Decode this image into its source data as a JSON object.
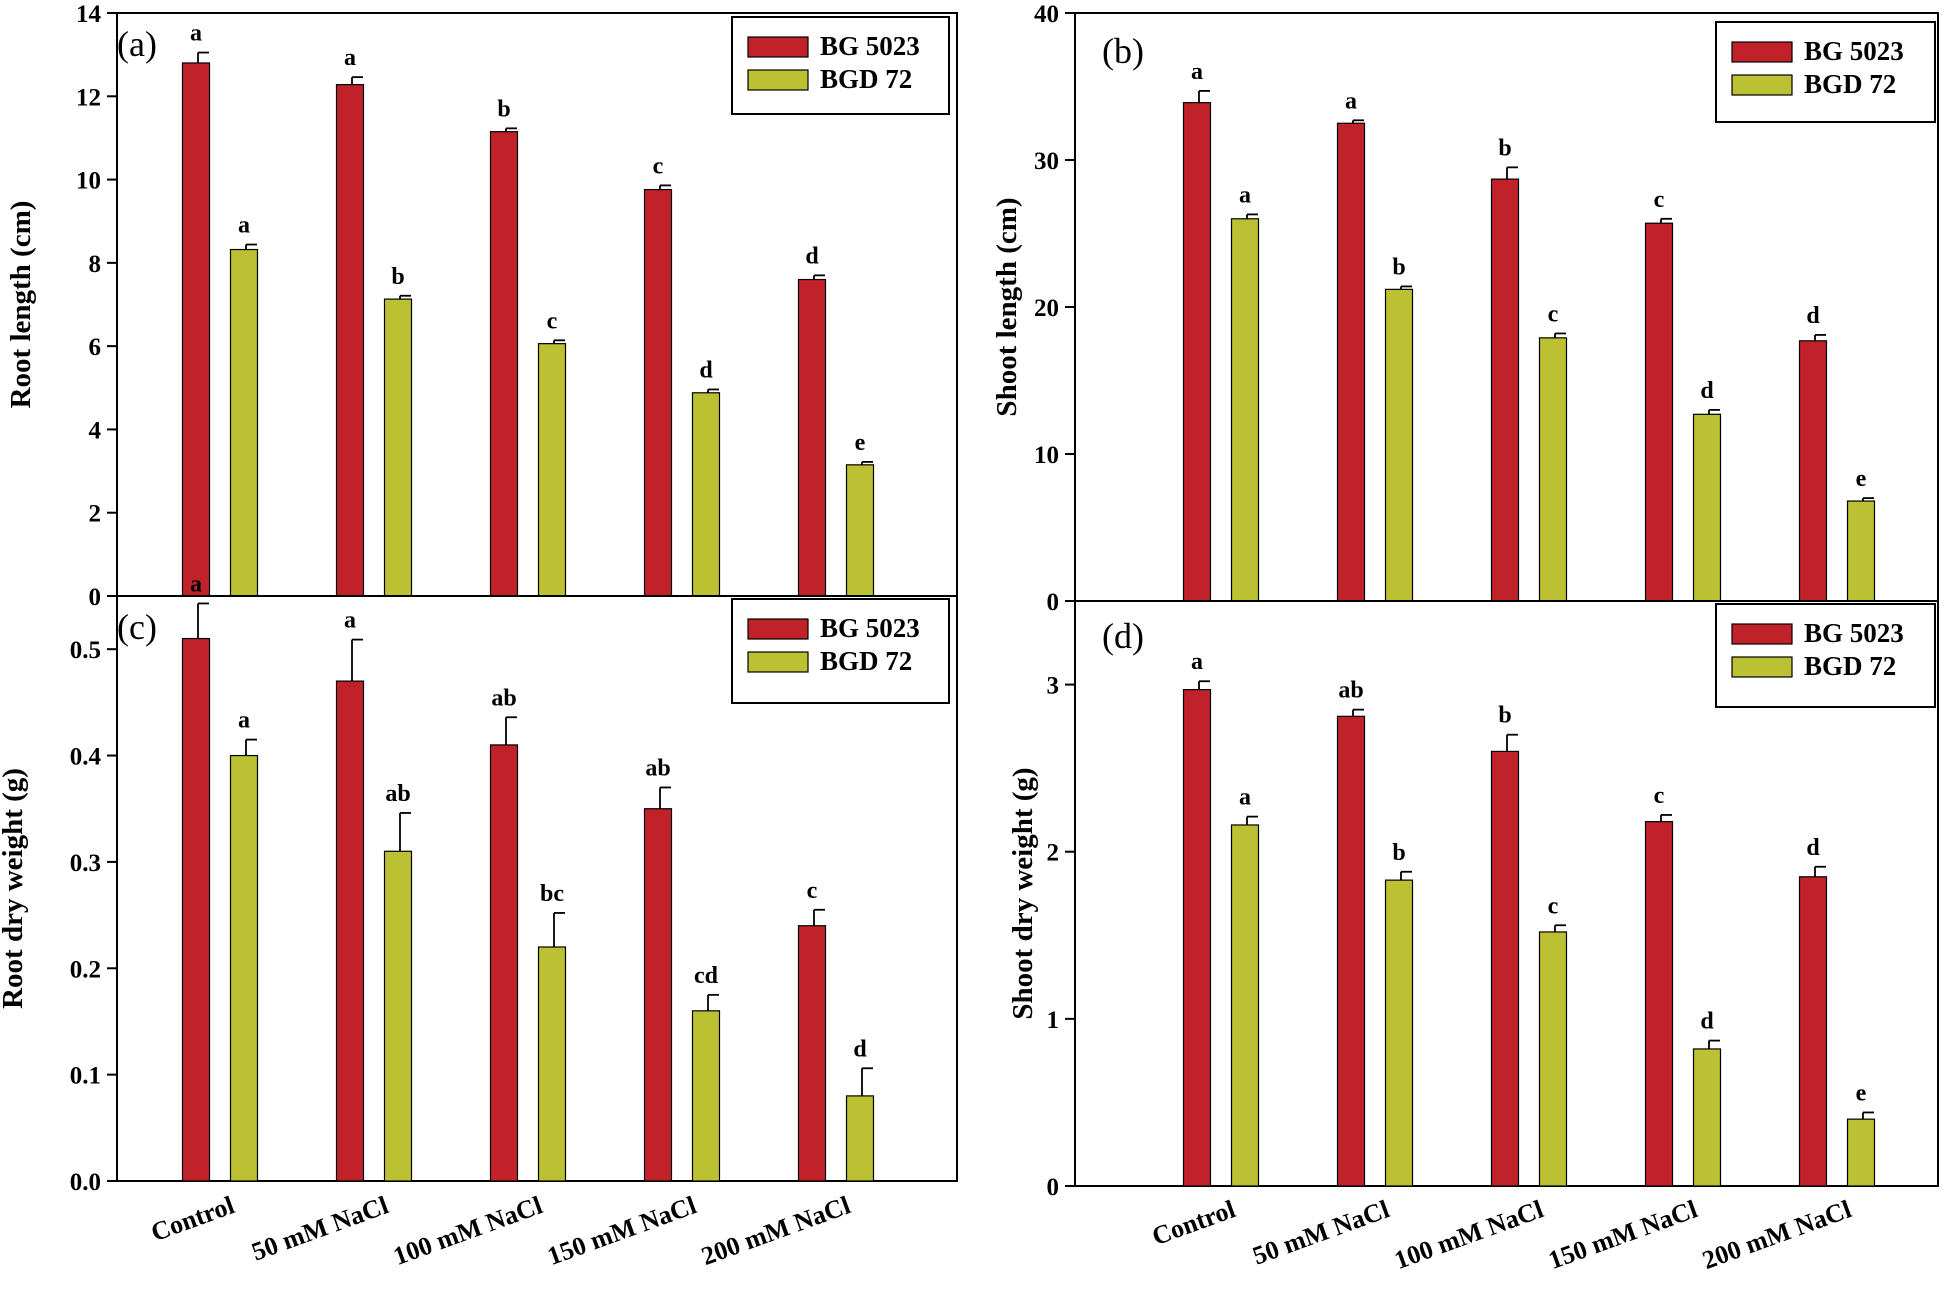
{
  "colors": {
    "series1": "#c1222a",
    "series2": "#bcc033",
    "axis": "#000000",
    "error": "#000000"
  },
  "chart_data": [
    {
      "type": "bar",
      "id": "a",
      "panel_label": "(a)",
      "categories": [
        "Control",
        "50 mM NaCl",
        "100 mM NaCl",
        "150 mM NaCl",
        "200 mM NaCl"
      ],
      "ylabel": "Root length (cm)",
      "xlabel": "",
      "ylim": [
        0,
        14
      ],
      "yticks": [
        0,
        2,
        4,
        6,
        8,
        10,
        12,
        14
      ],
      "tick_labels": [
        "0",
        "2",
        "4",
        "6",
        "8",
        "10",
        "12",
        "14"
      ],
      "legend_position": "top-right",
      "series": [
        {
          "name": "BG 5023",
          "values": [
            12.8,
            12.28,
            11.15,
            9.76,
            7.6
          ],
          "errors": [
            0.25,
            0.18,
            0.08,
            0.1,
            0.1
          ],
          "letters": [
            "a",
            "a",
            "b",
            "c",
            "d"
          ]
        },
        {
          "name": "BGD 72",
          "values": [
            8.32,
            7.13,
            6.06,
            4.88,
            3.15
          ],
          "errors": [
            0.12,
            0.08,
            0.08,
            0.08,
            0.07
          ],
          "letters": [
            "a",
            "b",
            "c",
            "d",
            "e"
          ]
        }
      ]
    },
    {
      "type": "bar",
      "id": "b",
      "panel_label": "(b)",
      "categories": [
        "Control",
        "50 mM NaCl",
        "100 mM NaCl",
        "150 mM NaCl",
        "200 mM NaCl"
      ],
      "ylabel": "Shoot length (cm)",
      "xlabel": "",
      "ylim": [
        0,
        40
      ],
      "yticks": [
        0,
        10,
        20,
        30,
        40
      ],
      "tick_labels": [
        "0",
        "10",
        "20",
        "30",
        "40"
      ],
      "legend_position": "top-right",
      "series": [
        {
          "name": "BG 5023",
          "values": [
            33.9,
            32.5,
            28.7,
            25.7,
            17.7
          ],
          "errors": [
            0.8,
            0.2,
            0.8,
            0.3,
            0.4
          ],
          "letters": [
            "a",
            "a",
            "b",
            "c",
            "d"
          ]
        },
        {
          "name": "BGD 72",
          "values": [
            26.0,
            21.2,
            17.9,
            12.7,
            6.8
          ],
          "errors": [
            0.3,
            0.2,
            0.3,
            0.3,
            0.2
          ],
          "letters": [
            "a",
            "b",
            "c",
            "d",
            "e"
          ]
        }
      ]
    },
    {
      "type": "bar",
      "id": "c",
      "panel_label": "(c)",
      "categories": [
        "Control",
        "50 mM NaCl",
        "100 mM NaCl",
        "150 mM NaCl",
        "200 mM NaCl"
      ],
      "ylabel": "Root dry weight (g)",
      "xlabel": "",
      "ylim": [
        0,
        0.55
      ],
      "yticks": [
        0,
        0.1,
        0.2,
        0.3,
        0.4,
        0.5
      ],
      "tick_labels": [
        "0.0",
        "0.1",
        "0.2",
        "0.3",
        "0.4",
        "0.5"
      ],
      "legend_position": "top-right",
      "series": [
        {
          "name": "BG 5023",
          "values": [
            0.51,
            0.47,
            0.41,
            0.35,
            0.24
          ],
          "errors": [
            0.033,
            0.039,
            0.026,
            0.02,
            0.015
          ],
          "letters": [
            "a",
            "a",
            "ab",
            "ab",
            "c"
          ]
        },
        {
          "name": "BGD 72",
          "values": [
            0.4,
            0.31,
            0.22,
            0.16,
            0.08
          ],
          "errors": [
            0.015,
            0.036,
            0.032,
            0.015,
            0.026
          ],
          "letters": [
            "a",
            "ab",
            "bc",
            "cd",
            "d"
          ]
        }
      ]
    },
    {
      "type": "bar",
      "id": "d",
      "panel_label": "(d)",
      "categories": [
        "Control",
        "50 mM NaCl",
        "100 mM NaCl",
        "150 mM NaCl",
        "200 mM NaCl"
      ],
      "ylabel": "Shoot dry weight (g)",
      "xlabel": "",
      "ylim": [
        0,
        3.5
      ],
      "yticks": [
        0,
        1,
        2,
        3
      ],
      "tick_labels": [
        "0",
        "1",
        "2",
        "3"
      ],
      "legend_position": "top-right",
      "series": [
        {
          "name": "BG 5023",
          "values": [
            2.97,
            2.81,
            2.6,
            2.18,
            1.85
          ],
          "errors": [
            0.05,
            0.04,
            0.1,
            0.04,
            0.06
          ],
          "letters": [
            "a",
            "ab",
            "b",
            "c",
            "d"
          ]
        },
        {
          "name": "BGD 72",
          "values": [
            2.16,
            1.83,
            1.52,
            0.82,
            0.4
          ],
          "errors": [
            0.05,
            0.05,
            0.04,
            0.05,
            0.04
          ],
          "letters": [
            "a",
            "b",
            "c",
            "d",
            "e"
          ]
        }
      ]
    }
  ]
}
